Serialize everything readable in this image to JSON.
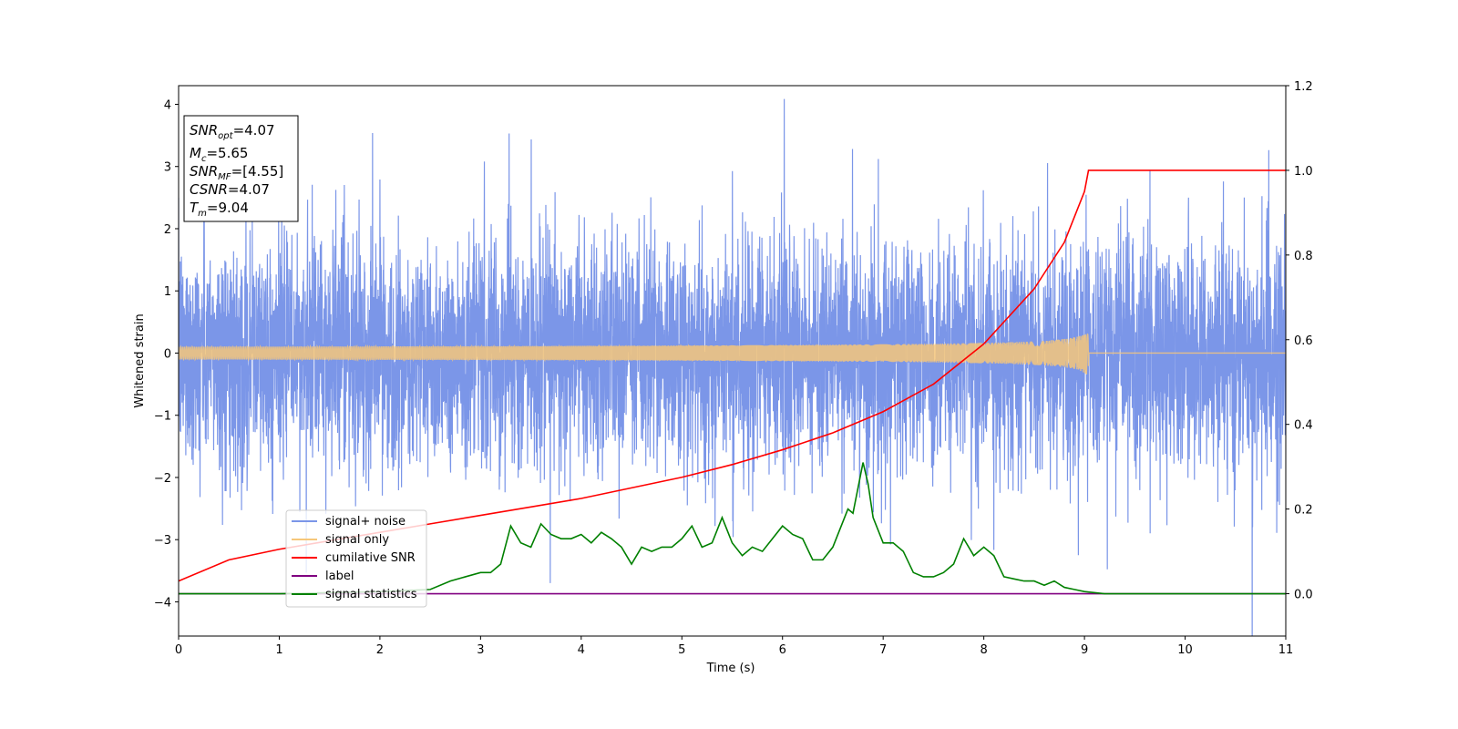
{
  "chart_data": {
    "type": "line",
    "xlabel": "Time (s)",
    "ylabel": "Whitened strain",
    "xlim": [
      0,
      11
    ],
    "ylim": [
      -4.55,
      4.3
    ],
    "y2lim": [
      -0.1,
      1.2
    ],
    "x_ticks": [
      "0",
      "1",
      "2",
      "3",
      "4",
      "5",
      "6",
      "7",
      "8",
      "9",
      "10",
      "11"
    ],
    "y_ticks": [
      "−4",
      "−3",
      "−2",
      "−1",
      "0",
      "1",
      "2",
      "3",
      "4"
    ],
    "y2_ticks": [
      "0.0",
      "0.2",
      "0.4",
      "0.6",
      "0.8",
      "1.0",
      "1.2"
    ],
    "grid": false,
    "legend_position": "lower-left",
    "info_box": {
      "snr_opt": {
        "sym": "SNR",
        "sub": "opt",
        "value": "=4.07"
      },
      "mc": {
        "sym": "M",
        "sub": "c",
        "value": "=5.65"
      },
      "snr_mf": {
        "sym": "SNR",
        "sub": "MF",
        "value": "=[4.55]"
      },
      "csnr": {
        "sym": "CSNR",
        "sub": "",
        "value": "=4.07"
      },
      "tm": {
        "sym": "T",
        "sub": "m",
        "value": "=9.04"
      }
    },
    "series": [
      {
        "name": "signal+ noise",
        "color": "#7b96e8",
        "axis": "left",
        "description_values": {
          "noise_std": 0.9,
          "t_max": 11
        }
      },
      {
        "name": "signal only",
        "color": "#f6c77a",
        "axis": "left",
        "chirp": {
          "t_merge": 9.04,
          "peak_amplitude": 0.45
        }
      },
      {
        "name": "cumilative SNR",
        "color": "#ff0000",
        "axis": "right",
        "x": [
          0,
          0.5,
          1,
          1.5,
          2,
          2.5,
          3,
          3.5,
          4,
          4.5,
          5,
          5.5,
          6,
          6.5,
          7,
          7.5,
          8,
          8.5,
          8.8,
          9.0,
          9.04,
          11
        ],
        "y": [
          0.03,
          0.08,
          0.105,
          0.125,
          0.145,
          0.165,
          0.185,
          0.205,
          0.225,
          0.25,
          0.275,
          0.305,
          0.34,
          0.38,
          0.43,
          0.495,
          0.59,
          0.72,
          0.83,
          0.95,
          1.0,
          1.0
        ]
      },
      {
        "name": "label",
        "color": "#800080",
        "axis": "right",
        "x": [
          0,
          11
        ],
        "y": [
          0.0,
          0.0
        ]
      },
      {
        "name": "signal statistics",
        "color": "#008000",
        "axis": "right",
        "x": [
          0,
          1,
          2,
          2.5,
          2.7,
          2.85,
          3.0,
          3.1,
          3.2,
          3.3,
          3.4,
          3.5,
          3.6,
          3.7,
          3.8,
          3.9,
          4.0,
          4.1,
          4.2,
          4.3,
          4.4,
          4.5,
          4.6,
          4.7,
          4.8,
          4.9,
          5.0,
          5.1,
          5.2,
          5.3,
          5.4,
          5.45,
          5.5,
          5.6,
          5.7,
          5.8,
          5.9,
          6.0,
          6.1,
          6.2,
          6.3,
          6.4,
          6.5,
          6.6,
          6.65,
          6.7,
          6.8,
          6.85,
          6.9,
          7.0,
          7.1,
          7.2,
          7.3,
          7.4,
          7.5,
          7.6,
          7.7,
          7.8,
          7.9,
          8.0,
          8.1,
          8.2,
          8.3,
          8.4,
          8.5,
          8.6,
          8.7,
          8.8,
          8.9,
          9.0,
          9.2,
          9.5,
          10,
          11
        ],
        "y": [
          0.0,
          0.0,
          0.005,
          0.01,
          0.03,
          0.04,
          0.05,
          0.05,
          0.07,
          0.16,
          0.12,
          0.11,
          0.165,
          0.14,
          0.13,
          0.13,
          0.14,
          0.12,
          0.145,
          0.13,
          0.11,
          0.07,
          0.11,
          0.1,
          0.11,
          0.11,
          0.13,
          0.16,
          0.11,
          0.12,
          0.18,
          0.15,
          0.12,
          0.09,
          0.11,
          0.1,
          0.13,
          0.16,
          0.14,
          0.13,
          0.08,
          0.08,
          0.11,
          0.17,
          0.2,
          0.19,
          0.31,
          0.26,
          0.18,
          0.12,
          0.12,
          0.1,
          0.05,
          0.04,
          0.04,
          0.05,
          0.07,
          0.13,
          0.09,
          0.11,
          0.09,
          0.04,
          0.035,
          0.03,
          0.03,
          0.02,
          0.03,
          0.015,
          0.01,
          0.005,
          0.0,
          0.0,
          0.0,
          0.0
        ]
      }
    ]
  }
}
